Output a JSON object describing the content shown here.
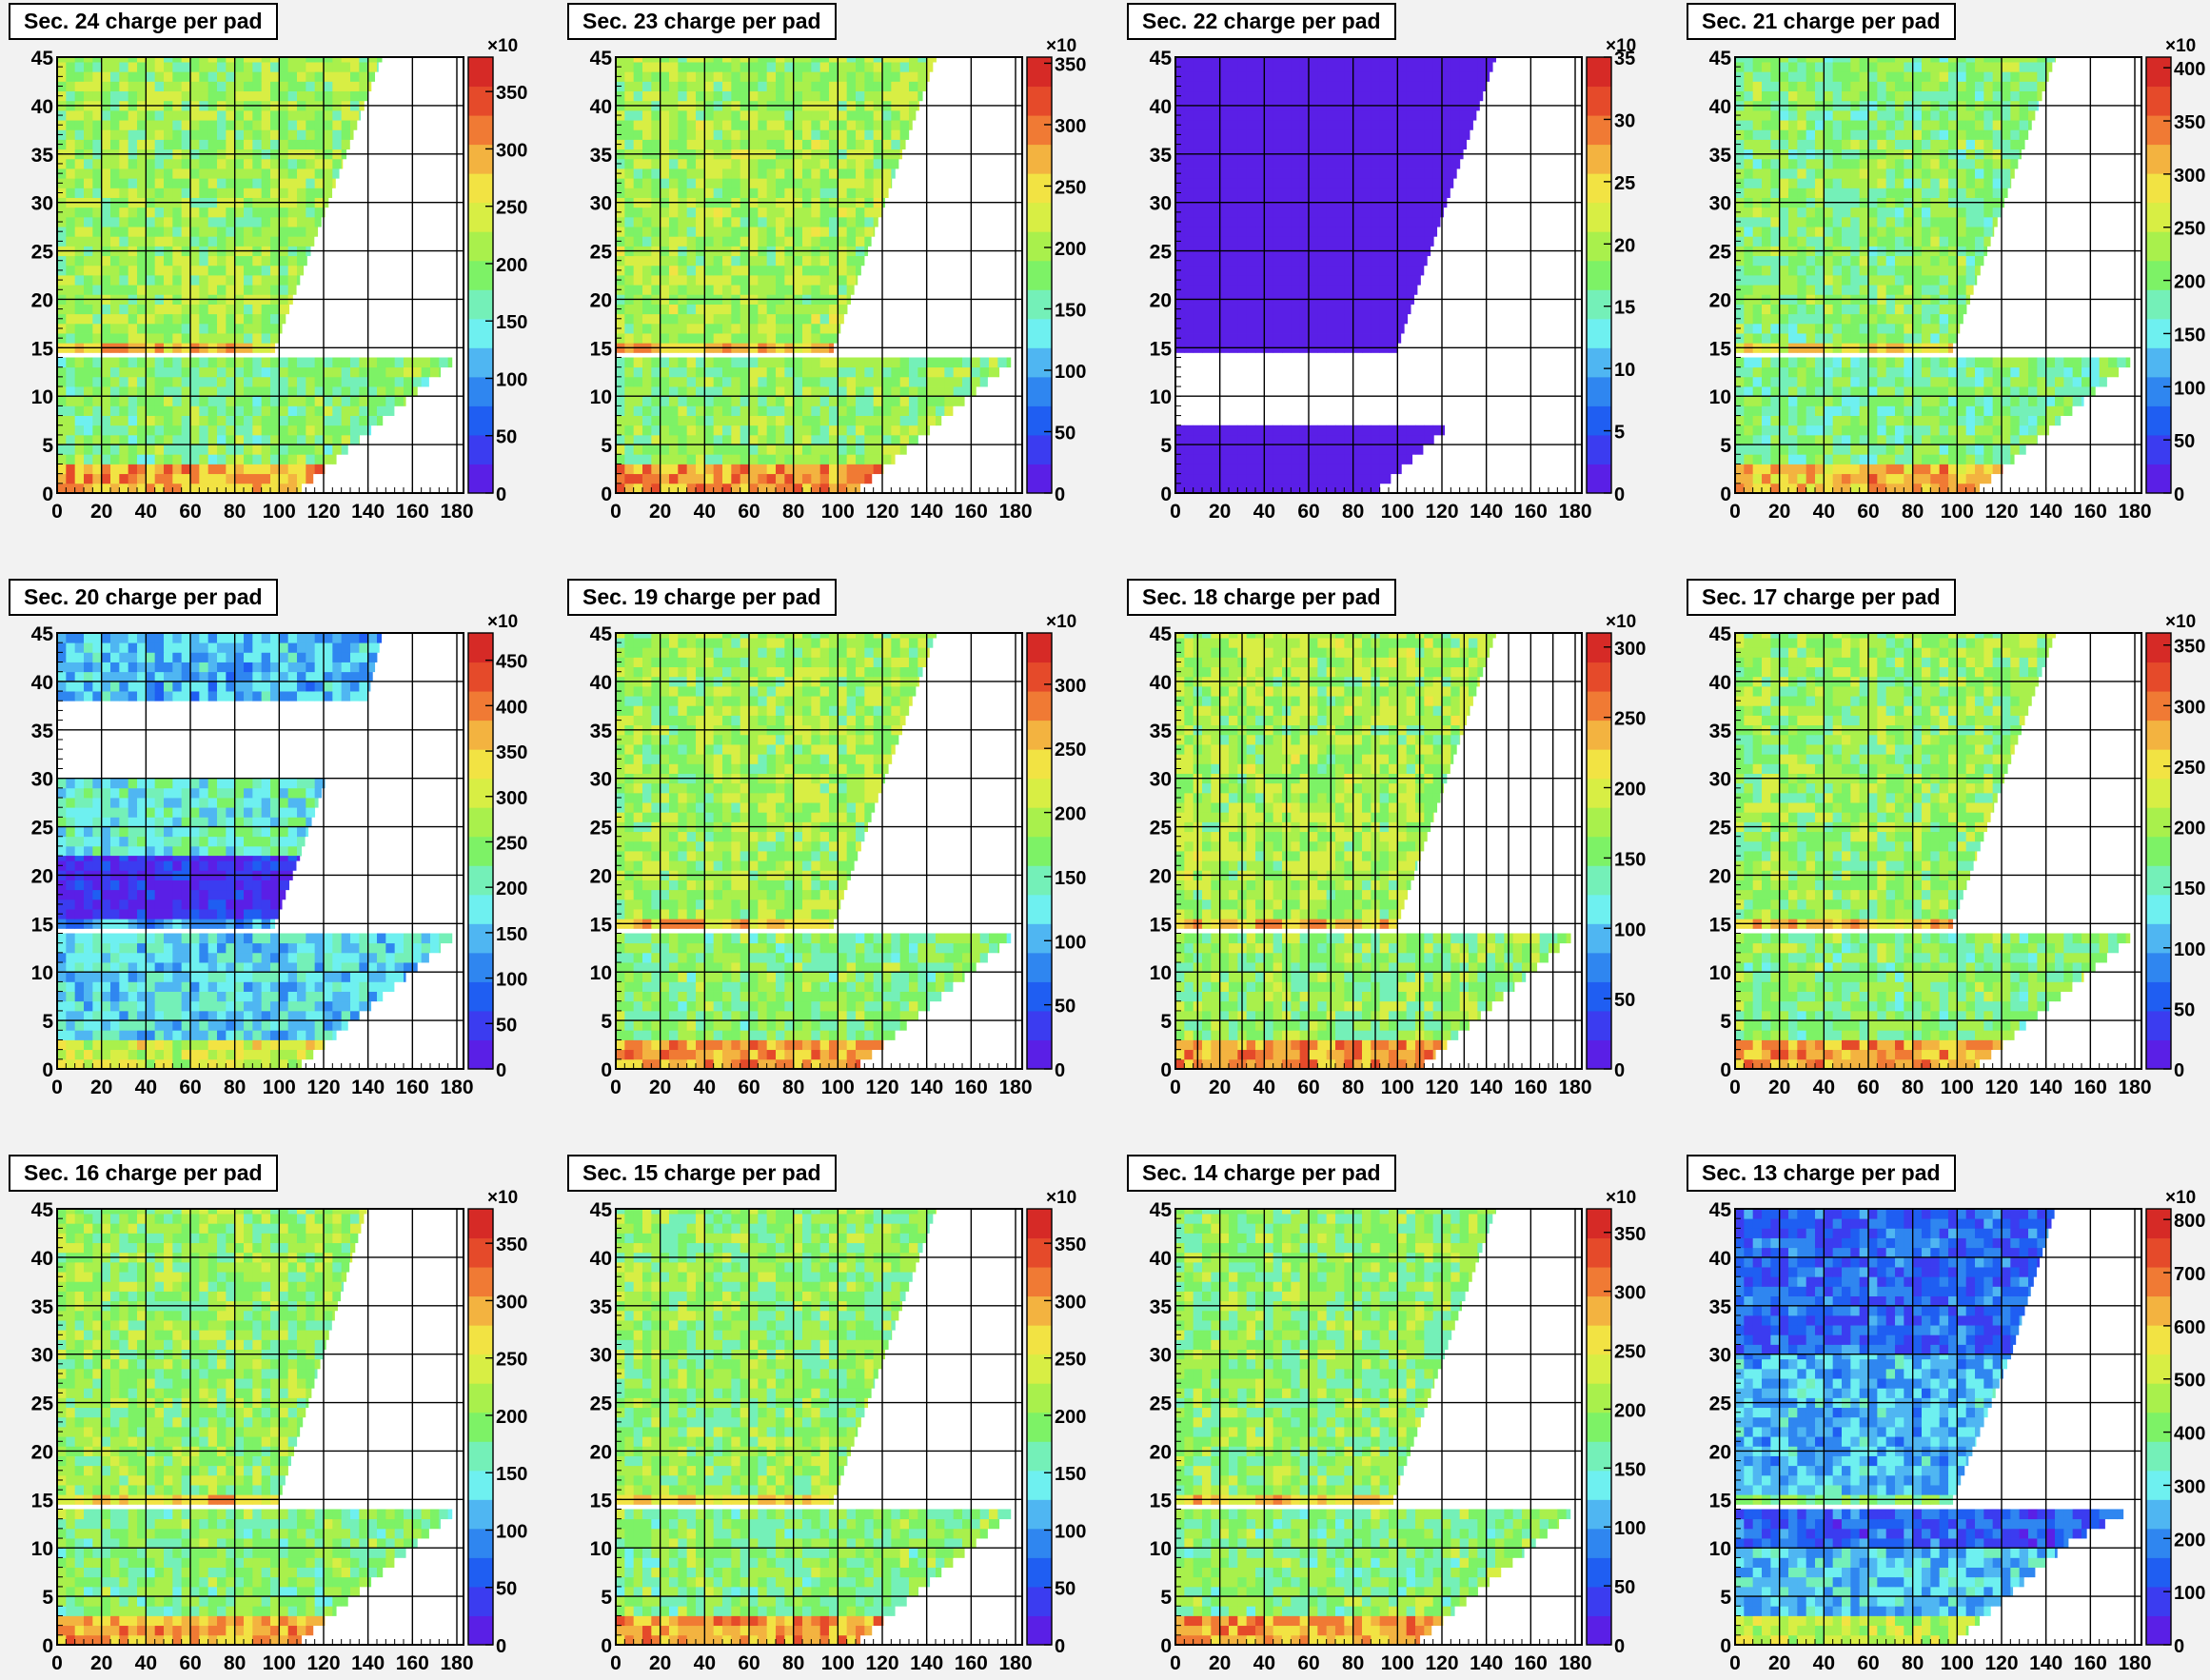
{
  "figure": {
    "colors": {
      "background": "#f2f2f2",
      "grid": "#000000",
      "palette": [
        "#5a1fe6",
        "#3b3cf0",
        "#1f5ef2",
        "#2f86f0",
        "#4fb6f2",
        "#6ef0f0",
        "#74f0b8",
        "#7df266",
        "#a9f04c",
        "#d8ee44",
        "#f2e343",
        "#f3b340",
        "#f07a34",
        "#e54a2a",
        "#d62a26"
      ]
    }
  },
  "chart_data": [
    {
      "type": "heatmap",
      "title": "Sec. 24 charge per pad",
      "xlim": [
        0,
        183
      ],
      "ylim": [
        0,
        45
      ],
      "xticks": [
        "0",
        "20",
        "40",
        "60",
        "80",
        "100",
        "120",
        "140",
        "160",
        "180"
      ],
      "yticks": [
        "0",
        "5",
        "10",
        "15",
        "20",
        "25",
        "30",
        "35",
        "40",
        "45"
      ],
      "z_exponent": "×10",
      "z_ticks": [
        "0",
        "50",
        "100",
        "150",
        "200",
        "250",
        "300",
        "350"
      ],
      "z_max": 380,
      "regions": [
        {
          "y0": 14.5,
          "y1": 45,
          "x_max_bottom": 98,
          "x_max_top": 147,
          "level": 0.55
        },
        {
          "y0": 0,
          "y1": 14,
          "x_max_bottom": 110,
          "x_max_top": 183,
          "level": 0.5
        }
      ]
    },
    {
      "type": "heatmap",
      "title": "Sec. 23 charge per pad",
      "xlim": [
        0,
        183
      ],
      "ylim": [
        0,
        45
      ],
      "xticks": [
        "0",
        "20",
        "40",
        "60",
        "80",
        "100",
        "120",
        "140",
        "160",
        "180"
      ],
      "yticks": [
        "0",
        "5",
        "10",
        "15",
        "20",
        "25",
        "30",
        "35",
        "40",
        "45"
      ],
      "z_exponent": "×10",
      "z_ticks": [
        "0",
        "50",
        "100",
        "150",
        "200",
        "250",
        "300",
        "350"
      ],
      "z_max": 355,
      "regions": [
        {
          "y0": 14.5,
          "y1": 45,
          "x_max_bottom": 98,
          "x_max_top": 145,
          "level": 0.56
        },
        {
          "y0": 0,
          "y1": 14,
          "x_max_bottom": 110,
          "x_max_top": 183,
          "level": 0.52
        }
      ]
    },
    {
      "type": "heatmap",
      "title": "Sec. 22 charge per pad",
      "xlim": [
        0,
        183
      ],
      "ylim": [
        0,
        45
      ],
      "xticks": [
        "0",
        "20",
        "40",
        "60",
        "80",
        "100",
        "120",
        "140",
        "160",
        "180"
      ],
      "yticks": [
        "0",
        "5",
        "10",
        "15",
        "20",
        "25",
        "30",
        "35",
        "40",
        "45"
      ],
      "z_exponent": "×10",
      "z_ticks": [
        "0",
        "5",
        "10",
        "15",
        "20",
        "25",
        "30",
        "35"
      ],
      "z_max": 35,
      "regions": [
        {
          "y0": 14.5,
          "y1": 45,
          "x_max_bottom": 100,
          "x_max_top": 145,
          "level": 0.0
        },
        {
          "y0": 0,
          "y1": 7,
          "x_max_bottom": 92,
          "x_max_top": 126,
          "level": 0.0
        }
      ]
    },
    {
      "type": "heatmap",
      "title": "Sec. 21 charge per pad",
      "xlim": [
        0,
        183
      ],
      "ylim": [
        0,
        45
      ],
      "xticks": [
        "0",
        "20",
        "40",
        "60",
        "80",
        "100",
        "120",
        "140",
        "160",
        "180"
      ],
      "yticks": [
        "0",
        "5",
        "10",
        "15",
        "20",
        "25",
        "30",
        "35",
        "40",
        "45"
      ],
      "z_exponent": "×10",
      "z_ticks": [
        "0",
        "50",
        "100",
        "150",
        "200",
        "250",
        "300",
        "350",
        "400"
      ],
      "z_max": 410,
      "regions": [
        {
          "y0": 14.5,
          "y1": 45,
          "x_max_bottom": 98,
          "x_max_top": 145,
          "level": 0.5
        },
        {
          "y0": 0,
          "y1": 14,
          "x_max_bottom": 110,
          "x_max_top": 183,
          "level": 0.48
        }
      ]
    },
    {
      "type": "heatmap",
      "title": "Sec. 20 charge per pad",
      "xlim": [
        0,
        183
      ],
      "ylim": [
        0,
        45
      ],
      "xticks": [
        "0",
        "20",
        "40",
        "60",
        "80",
        "100",
        "120",
        "140",
        "160",
        "180"
      ],
      "yticks": [
        "0",
        "5",
        "10",
        "15",
        "20",
        "25",
        "30",
        "35",
        "40",
        "45"
      ],
      "z_exponent": "×10",
      "z_ticks": [
        "0",
        "50",
        "100",
        "150",
        "200",
        "250",
        "300",
        "350",
        "400",
        "450"
      ],
      "z_max": 480,
      "regions": [
        {
          "y0": 38,
          "y1": 45,
          "x_max_bottom": 140,
          "x_max_top": 147,
          "level": 0.3
        },
        {
          "y0": 22,
          "y1": 30,
          "x_max_bottom": 110,
          "x_max_top": 122,
          "level": 0.4
        },
        {
          "y0": 14.5,
          "y1": 22,
          "x_max_bottom": 98,
          "x_max_top": 110,
          "level": 0.05
        },
        {
          "y0": 0,
          "y1": 14,
          "x_max_bottom": 110,
          "x_max_top": 183,
          "level": 0.35
        }
      ]
    },
    {
      "type": "heatmap",
      "title": "Sec. 19 charge per pad",
      "xlim": [
        0,
        183
      ],
      "ylim": [
        0,
        45
      ],
      "xticks": [
        "0",
        "20",
        "40",
        "60",
        "80",
        "100",
        "120",
        "140",
        "160",
        "180"
      ],
      "yticks": [
        "0",
        "5",
        "10",
        "15",
        "20",
        "25",
        "30",
        "35",
        "40",
        "45"
      ],
      "z_exponent": "×10",
      "z_ticks": [
        "0",
        "50",
        "100",
        "150",
        "200",
        "250",
        "300"
      ],
      "z_max": 340,
      "regions": [
        {
          "y0": 14.5,
          "y1": 45,
          "x_max_bottom": 98,
          "x_max_top": 145,
          "level": 0.55
        },
        {
          "y0": 0,
          "y1": 14,
          "x_max_bottom": 110,
          "x_max_top": 183,
          "level": 0.5
        }
      ]
    },
    {
      "type": "heatmap",
      "title": "Sec. 18 charge per pad",
      "xlim": [
        0,
        183
      ],
      "ylim": [
        0,
        45
      ],
      "xticks": [
        "0",
        "10",
        "20",
        "30",
        "40",
        "50",
        "60",
        "70",
        "80",
        "90",
        "100",
        "110",
        "120",
        "130",
        "140",
        "150",
        "160",
        "170",
        "180"
      ],
      "xtick_labels_every": 2,
      "yticks": [
        "0",
        "5",
        "10",
        "15",
        "20",
        "25",
        "30",
        "35",
        "40",
        "45"
      ],
      "z_exponent": "×10",
      "z_ticks": [
        "0",
        "50",
        "100",
        "150",
        "200",
        "250",
        "300"
      ],
      "z_max": 310,
      "regions": [
        {
          "y0": 14.5,
          "y1": 45,
          "x_max_bottom": 100,
          "x_max_top": 145,
          "level": 0.56
        },
        {
          "y0": 0,
          "y1": 14,
          "x_max_bottom": 112,
          "x_max_top": 183,
          "level": 0.52
        }
      ]
    },
    {
      "type": "heatmap",
      "title": "Sec. 17 charge per pad",
      "xlim": [
        0,
        183
      ],
      "ylim": [
        0,
        45
      ],
      "xticks": [
        "0",
        "20",
        "40",
        "60",
        "80",
        "100",
        "120",
        "140",
        "160",
        "180"
      ],
      "yticks": [
        "0",
        "5",
        "10",
        "15",
        "20",
        "25",
        "30",
        "35",
        "40",
        "45"
      ],
      "z_exponent": "×10",
      "z_ticks": [
        "0",
        "50",
        "100",
        "150",
        "200",
        "250",
        "300",
        "350"
      ],
      "z_max": 360,
      "regions": [
        {
          "y0": 14.5,
          "y1": 45,
          "x_max_bottom": 98,
          "x_max_top": 145,
          "level": 0.53
        },
        {
          "y0": 0,
          "y1": 14,
          "x_max_bottom": 110,
          "x_max_top": 183,
          "level": 0.5
        }
      ]
    },
    {
      "type": "heatmap",
      "title": "Sec. 16 charge per pad",
      "xlim": [
        0,
        183
      ],
      "ylim": [
        0,
        45
      ],
      "xticks": [
        "0",
        "20",
        "40",
        "60",
        "80",
        "100",
        "120",
        "140",
        "160",
        "180"
      ],
      "yticks": [
        "0",
        "5",
        "10",
        "15",
        "20",
        "25",
        "30",
        "35",
        "40",
        "45"
      ],
      "z_exponent": "×10",
      "z_ticks": [
        "0",
        "50",
        "100",
        "150",
        "200",
        "250",
        "300",
        "350"
      ],
      "z_max": 380,
      "regions": [
        {
          "y0": 14.5,
          "y1": 45,
          "x_max_bottom": 100,
          "x_max_top": 140,
          "level": 0.53
        },
        {
          "y0": 0,
          "y1": 14,
          "x_max_bottom": 110,
          "x_max_top": 183,
          "level": 0.5
        }
      ]
    },
    {
      "type": "heatmap",
      "title": "Sec. 15 charge per pad",
      "xlim": [
        0,
        183
      ],
      "ylim": [
        0,
        45
      ],
      "xticks": [
        "0",
        "20",
        "40",
        "60",
        "80",
        "100",
        "120",
        "140",
        "160",
        "180"
      ],
      "yticks": [
        "0",
        "5",
        "10",
        "15",
        "20",
        "25",
        "30",
        "35",
        "40",
        "45"
      ],
      "z_exponent": "×10",
      "z_ticks": [
        "0",
        "50",
        "100",
        "150",
        "200",
        "250",
        "300",
        "350"
      ],
      "z_max": 380,
      "regions": [
        {
          "y0": 14.5,
          "y1": 45,
          "x_max_bottom": 98,
          "x_max_top": 145,
          "level": 0.52
        },
        {
          "y0": 0,
          "y1": 14,
          "x_max_bottom": 110,
          "x_max_top": 183,
          "level": 0.5
        }
      ]
    },
    {
      "type": "heatmap",
      "title": "Sec. 14 charge per pad",
      "xlim": [
        0,
        183
      ],
      "ylim": [
        0,
        45
      ],
      "xticks": [
        "0",
        "20",
        "40",
        "60",
        "80",
        "100",
        "120",
        "140",
        "160",
        "180"
      ],
      "yticks": [
        "0",
        "5",
        "10",
        "15",
        "20",
        "25",
        "30",
        "35",
        "40",
        "45"
      ],
      "z_exponent": "×10",
      "z_ticks": [
        "0",
        "50",
        "100",
        "150",
        "200",
        "250",
        "300",
        "350"
      ],
      "z_max": 370,
      "regions": [
        {
          "y0": 14.5,
          "y1": 45,
          "x_max_bottom": 98,
          "x_max_top": 145,
          "level": 0.52
        },
        {
          "y0": 0,
          "y1": 14,
          "x_max_bottom": 110,
          "x_max_top": 183,
          "level": 0.5
        }
      ]
    },
    {
      "type": "heatmap",
      "title": "Sec. 13 charge per pad",
      "xlim": [
        0,
        183
      ],
      "ylim": [
        0,
        45
      ],
      "xticks": [
        "0",
        "20",
        "40",
        "60",
        "80",
        "100",
        "120",
        "140",
        "160",
        "180"
      ],
      "yticks": [
        "0",
        "5",
        "10",
        "15",
        "20",
        "25",
        "30",
        "35",
        "40",
        "45"
      ],
      "z_exponent": "×10",
      "z_ticks": [
        "0",
        "100",
        "200",
        "300",
        "400",
        "500",
        "600",
        "700",
        "800"
      ],
      "z_max": 820,
      "regions": [
        {
          "y0": 30,
          "y1": 45,
          "x_max_bottom": 125,
          "x_max_top": 145,
          "level": 0.18
        },
        {
          "y0": 14.5,
          "y1": 30,
          "x_max_bottom": 98,
          "x_max_top": 125,
          "level": 0.3
        },
        {
          "y0": 10,
          "y1": 14,
          "x_max_bottom": 150,
          "x_max_top": 183,
          "level": 0.17
        },
        {
          "y0": 0,
          "y1": 10,
          "x_max_bottom": 100,
          "x_max_top": 150,
          "level": 0.32
        }
      ]
    }
  ]
}
